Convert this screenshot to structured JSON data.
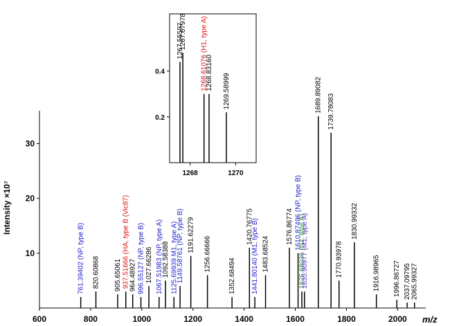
{
  "chart_data": [
    {
      "type": "stem",
      "xlabel": "m/z",
      "ylabel": "Intensity ×10⁷",
      "x": [
        761.39402,
        820.60868,
        905.65061,
        937.51666,
        964.48927,
        996.55127,
        1027.66286,
        1067.51983,
        1092.58388,
        1125.69939,
        1149.58761,
        1191.62279,
        1256.66666,
        1352.68494,
        1420.76775,
        1441.8014,
        1483.68524,
        1576.86774,
        1610.87496,
        1625.68036,
        1635.90977,
        1689.89082,
        1739.78083,
        1770.93978,
        1830.99332,
        1916.98965,
        1996.86727,
        2037.09795,
        2065.99327
      ],
      "values": [
        2,
        3,
        2.5,
        3,
        2.5,
        2,
        4,
        2,
        5,
        2,
        4,
        9.5,
        6,
        2,
        11,
        2,
        6,
        11,
        10,
        3,
        3,
        35,
        32,
        5,
        12,
        2.5,
        1.5,
        1,
        1
      ],
      "labels": [
        "761.39402 (NP, type B)",
        "820.60868",
        "905.65061",
        "937.51666 (HA, type B (Vic87)",
        "964.48927",
        "996.55127 (NP, type B)",
        "1027.66286",
        "1067.51983 (NP, type A)",
        "1092.58388",
        "1125.69939 M1, type A)",
        "1149.58761 (NP, type B)",
        "1191.62279",
        "1256.66666",
        "1352.68494",
        "1420.76775",
        "1441.80140 (M1, type B)",
        "1483.68524",
        "1576.86774",
        "1610.87496 (NP, type B)",
        "1625.68036 (N2, type A)",
        "1635.90977 (M1, type A)",
        "1689.89082",
        "1739.78083",
        "1770.93978",
        "1830.99332",
        "1916.98965",
        "1996.86727",
        "2037.09795",
        "2065.99327"
      ],
      "label_colors": [
        "#2222cc",
        "#000000",
        "#000000",
        "#dd1111",
        "#000000",
        "#2222cc",
        "#000000",
        "#2222cc",
        "#000000",
        "#2222cc",
        "#2222cc",
        "#000000",
        "#000000",
        "#000000",
        "#000000",
        "#2222cc",
        "#000000",
        "#000000",
        "#2222cc",
        "#22aa22",
        "#6633cc",
        "#000000",
        "#000000",
        "#000000",
        "#000000",
        "#000000",
        "#000000",
        "#000000",
        "#000000"
      ],
      "color": "#000000",
      "xlim": [
        600,
        2110
      ],
      "xticks": [
        600,
        800,
        1000,
        1200,
        1400,
        1600,
        1800,
        2000
      ],
      "ylim": [
        0,
        36
      ],
      "yticks": [
        10,
        20,
        30
      ]
    },
    {
      "type": "stem",
      "x": [
        1267.55597,
        1267.67978,
        1268.61076,
        1268.8316,
        1269.58999
      ],
      "values": [
        0.44,
        0.48,
        0.3,
        0.3,
        0.22
      ],
      "labels": [
        "1267.55597",
        "1267.67978",
        "1268.61076 (H1, type A)",
        "1268.83160",
        "1269.58999"
      ],
      "label_colors": [
        "#000000",
        "#000000",
        "#dd1111",
        "#000000",
        "#000000"
      ],
      "color": "#000000",
      "xlim": [
        1267.1,
        1270.9
      ],
      "xticks": [
        1268,
        1270
      ],
      "ylim": [
        0,
        0.65
      ],
      "yticks": [
        0.2,
        0.4
      ]
    }
  ]
}
